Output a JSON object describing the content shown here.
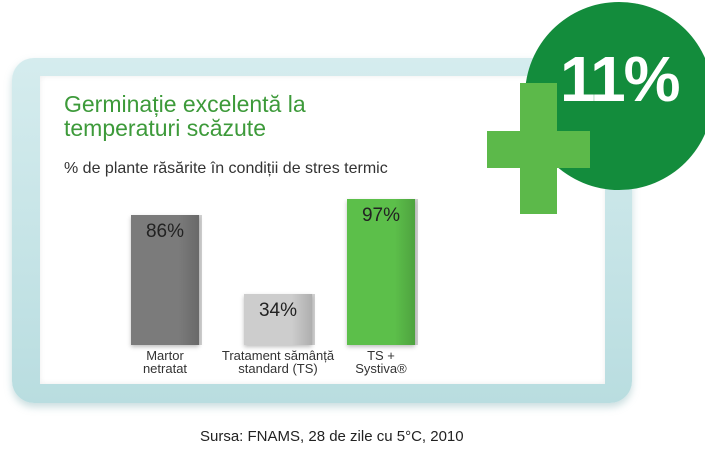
{
  "chart_data": {
    "type": "bar",
    "title": "Germinație excelentă la temperaturi scăzute",
    "subtitle": "% de plante răsărite în condiții de stres termic",
    "categories": [
      "Martor netratat",
      "Tratament sămânță standard (TS)",
      "TS + Systiva®"
    ],
    "values": [
      86,
      34,
      97
    ],
    "value_labels": [
      "86%",
      "34%",
      "97%"
    ],
    "colors": [
      "#7b7b7b",
      "#cdcdcd",
      "#5cbf4a"
    ],
    "annotation": "11%",
    "source": "Sursa: FNAMS, 28 de zile cu 5°C, 2010"
  }
}
